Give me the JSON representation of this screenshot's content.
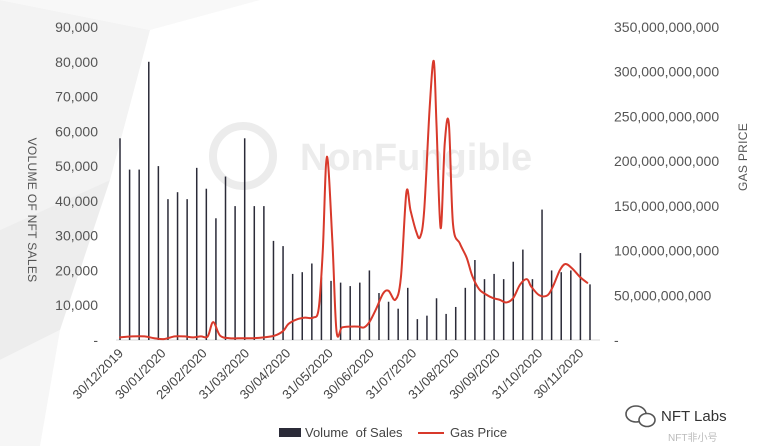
{
  "chart_data": {
    "type": "bar+line",
    "title": "",
    "x_tick_labels": [
      "30/12/2019",
      "30/01/2020",
      "29/02/2020",
      "31/03/2020",
      "30/04/2020",
      "31/05/2020",
      "30/06/2020",
      "31/07/2020",
      "31/08/2020",
      "30/09/2020",
      "31/10/2020",
      "30/11/2020"
    ],
    "left_axis": {
      "label": "VOLUME OF NFT SALES",
      "ticks": [
        "-",
        "10,000",
        "20,000",
        "30,000",
        "40,000",
        "50,000",
        "60,000",
        "70,000",
        "80,000",
        "90,000"
      ],
      "ylim": [
        0,
        90000
      ]
    },
    "right_axis": {
      "label": "GAS PRICE",
      "ticks": [
        "-",
        "50,000,000,000",
        "100,000,000,000",
        "150,000,000,000",
        "200,000,000,000",
        "250,000,000,000",
        "300,000,000,000",
        "350,000,000,000"
      ],
      "ylim": [
        0,
        350000000000
      ]
    },
    "series": [
      {
        "name": "Volume  of Sales",
        "type": "bar",
        "axis": "left",
        "color": "#2b2b38",
        "weeks": [
          "2019-12-30",
          "2020-01-06",
          "2020-01-13",
          "2020-01-20",
          "2020-01-27",
          "2020-02-03",
          "2020-02-10",
          "2020-02-17",
          "2020-02-24",
          "2020-03-02",
          "2020-03-09",
          "2020-03-16",
          "2020-03-23",
          "2020-03-30",
          "2020-04-06",
          "2020-04-13",
          "2020-04-20",
          "2020-04-27",
          "2020-05-04",
          "2020-05-11",
          "2020-05-18",
          "2020-05-25",
          "2020-06-01",
          "2020-06-08",
          "2020-06-15",
          "2020-06-22",
          "2020-06-29",
          "2020-07-06",
          "2020-07-13",
          "2020-07-20",
          "2020-07-27",
          "2020-08-03",
          "2020-08-10",
          "2020-08-17",
          "2020-08-24",
          "2020-08-31",
          "2020-09-07",
          "2020-09-14",
          "2020-09-21",
          "2020-09-28",
          "2020-10-05",
          "2020-10-12",
          "2020-10-19",
          "2020-10-26",
          "2020-11-02",
          "2020-11-09",
          "2020-11-16",
          "2020-11-23",
          "2020-11-30",
          "2020-12-07"
        ],
        "values": [
          58000,
          49000,
          49000,
          80000,
          50000,
          40500,
          42500,
          40500,
          49500,
          43500,
          35000,
          47000,
          38500,
          58000,
          38500,
          38500,
          28500,
          27000,
          19000,
          19500,
          22000,
          18000,
          17000,
          16500,
          15500,
          16500,
          20000,
          13500,
          11000,
          9000,
          15000,
          6000,
          7000,
          12000,
          7500,
          9500,
          15000,
          23000,
          17500,
          19000,
          17500,
          22500,
          26000,
          17500,
          37500,
          20000,
          19500,
          20000,
          25000,
          16000
        ]
      },
      {
        "name": "Gas Price",
        "type": "line",
        "axis": "right",
        "color": "#d8392b",
        "x": [
          "2019-12-30",
          "2020-01-08",
          "2020-01-17",
          "2020-01-24",
          "2020-01-31",
          "2020-02-08",
          "2020-02-15",
          "2020-02-21",
          "2020-02-27",
          "2020-03-03",
          "2020-03-07",
          "2020-03-12",
          "2020-03-19",
          "2020-03-28",
          "2020-04-05",
          "2020-04-13",
          "2020-04-21",
          "2020-04-27",
          "2020-05-01",
          "2020-05-07",
          "2020-05-13",
          "2020-05-19",
          "2020-05-23",
          "2020-05-26",
          "2020-05-29",
          "2020-06-02",
          "2020-06-05",
          "2020-06-09",
          "2020-06-15",
          "2020-06-21",
          "2020-06-25",
          "2020-06-29",
          "2020-07-04",
          "2020-07-09",
          "2020-07-13",
          "2020-07-18",
          "2020-07-22",
          "2020-07-26",
          "2020-07-29",
          "2020-08-02",
          "2020-08-05",
          "2020-08-08",
          "2020-08-12",
          "2020-08-15",
          "2020-08-17",
          "2020-08-20",
          "2020-08-23",
          "2020-08-26",
          "2020-08-29",
          "2020-09-03",
          "2020-09-08",
          "2020-09-12",
          "2020-09-17",
          "2020-09-22",
          "2020-09-27",
          "2020-10-02",
          "2020-10-07",
          "2020-10-12",
          "2020-10-17",
          "2020-10-22",
          "2020-10-25",
          "2020-10-31",
          "2020-11-06",
          "2020-11-10",
          "2020-11-15",
          "2020-11-19",
          "2020-11-24",
          "2020-11-30",
          "2020-12-05"
        ],
        "values": [
          3000000000,
          4000000000,
          4000000000,
          2000000000,
          1000000000,
          4000000000,
          4000000000,
          3000000000,
          4000000000,
          4000000000,
          20000000000,
          5000000000,
          2000000000,
          2000000000,
          2000000000,
          3000000000,
          5000000000,
          10000000000,
          18000000000,
          23000000000,
          25000000000,
          25000000000,
          35000000000,
          100000000000,
          205000000000,
          110000000000,
          10000000000,
          14000000000,
          15000000000,
          15000000000,
          14000000000,
          20000000000,
          35000000000,
          52000000000,
          55000000000,
          45000000000,
          70000000000,
          165000000000,
          145000000000,
          122000000000,
          115000000000,
          145000000000,
          260000000000,
          312000000000,
          240000000000,
          125000000000,
          220000000000,
          242000000000,
          130000000000,
          108000000000,
          92000000000,
          72000000000,
          57000000000,
          51000000000,
          47000000000,
          45000000000,
          42000000000,
          47000000000,
          62000000000,
          68000000000,
          60000000000,
          50000000000,
          50000000000,
          60000000000,
          78000000000,
          85000000000,
          80000000000,
          70000000000,
          64000000000
        ]
      }
    ],
    "legend_position": "bottom",
    "grid": false
  },
  "watermark": {
    "text": "NonFungible"
  },
  "badge": {
    "text": "NFT Labs",
    "sub": "NFT非小号",
    "icon": "wechat-icon"
  }
}
